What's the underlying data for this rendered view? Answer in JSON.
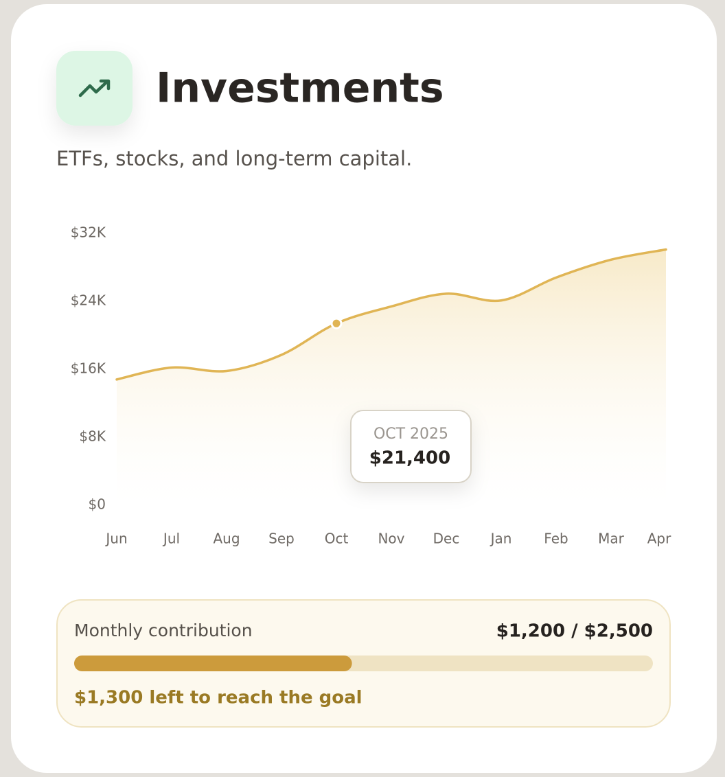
{
  "header": {
    "title": "Investments",
    "subtitle": "ETFs, stocks, and long-term capital."
  },
  "chart_data": {
    "type": "area",
    "categories": [
      "Jun",
      "Jul",
      "Aug",
      "Sep",
      "Oct",
      "Nov",
      "Dec",
      "Jan",
      "Feb",
      "Mar",
      "Apr"
    ],
    "values": [
      14800,
      16200,
      15800,
      17700,
      21400,
      23400,
      24900,
      24100,
      26800,
      28900,
      30100
    ],
    "color": "#e0b555",
    "ylim": [
      0,
      32000
    ],
    "yticks": [
      {
        "value": 0,
        "label": "$0"
      },
      {
        "value": 8000,
        "label": "$8K"
      },
      {
        "value": 16000,
        "label": "$16K"
      },
      {
        "value": 24000,
        "label": "$24K"
      },
      {
        "value": 32000,
        "label": "$32K"
      }
    ],
    "grid": false,
    "tooltip": {
      "title": "OCT 2025",
      "value": 21400,
      "label": "$21,400"
    }
  },
  "contribution": {
    "label": "Monthly contribution",
    "amount_label": "$1,200 / $2,500",
    "value": 1200,
    "goal": 2500,
    "note": "$1,300 left to reach the goal"
  }
}
